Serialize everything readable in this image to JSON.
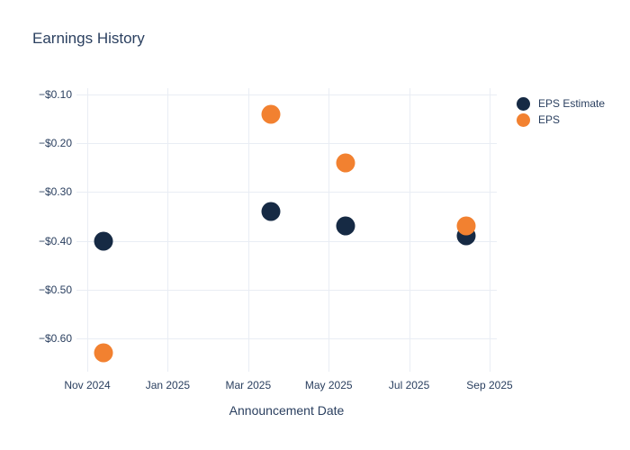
{
  "title": "Earnings History",
  "colors": {
    "eps_estimate": "#162a44",
    "eps": "#f28130",
    "text": "#2a3f5f",
    "gridline": "#e9edf4",
    "background": "#ffffff"
  },
  "legend": {
    "items": [
      {
        "label": "EPS Estimate",
        "color": "#162a44"
      },
      {
        "label": "EPS",
        "color": "#f28130"
      }
    ]
  },
  "chart_data": {
    "type": "scatter",
    "title": "Earnings History",
    "xlabel": "Announcement Date",
    "ylabel": "",
    "grid": true,
    "legend_position": "right-top",
    "x_axis": {
      "title": "Announcement Date",
      "ticks": [
        {
          "label": "Nov 2024",
          "month_offset": 0
        },
        {
          "label": "Jan 2025",
          "month_offset": 2
        },
        {
          "label": "Mar 2025",
          "month_offset": 4
        },
        {
          "label": "May 2025",
          "month_offset": 6
        },
        {
          "label": "Jul 2025",
          "month_offset": 8
        },
        {
          "label": "Sep 2025",
          "month_offset": 10
        }
      ],
      "approx_range": [
        "2024-10-24",
        "2025-09-06"
      ]
    },
    "y_axis": {
      "ticks": [
        {
          "label": "−$0.10",
          "value": -0.1
        },
        {
          "label": "−$0.20",
          "value": -0.2
        },
        {
          "label": "−$0.30",
          "value": -0.3
        },
        {
          "label": "−$0.40",
          "value": -0.4
        },
        {
          "label": "−$0.50",
          "value": -0.5
        },
        {
          "label": "−$0.60",
          "value": -0.6
        }
      ],
      "ylim": [
        -0.67,
        -0.085
      ]
    },
    "series": [
      {
        "name": "EPS Estimate",
        "color": "#162a44",
        "points": [
          {
            "date": "2024-11-13",
            "value": -0.4
          },
          {
            "date": "2025-03-18",
            "value": -0.34
          },
          {
            "date": "2025-05-14",
            "value": -0.37
          },
          {
            "date": "2025-08-14",
            "value": -0.39
          }
        ]
      },
      {
        "name": "EPS",
        "color": "#f28130",
        "points": [
          {
            "date": "2024-11-13",
            "value": -0.63
          },
          {
            "date": "2025-03-18",
            "value": -0.14
          },
          {
            "date": "2025-05-14",
            "value": -0.24
          },
          {
            "date": "2025-08-14",
            "value": -0.37
          }
        ]
      }
    ]
  }
}
